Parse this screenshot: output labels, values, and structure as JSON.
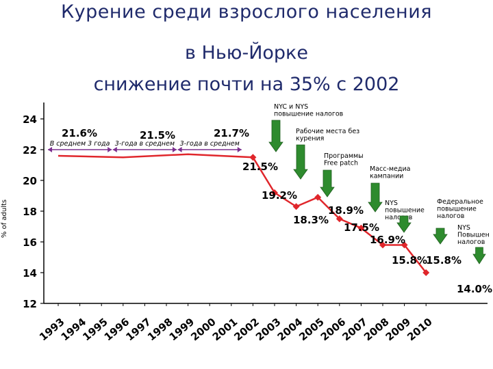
{
  "title": {
    "line1": "Курение среди взрослого населения",
    "line2": "в Нью-Йорке",
    "line3": "снижение почти на 35% с 2002"
  },
  "colors": {
    "title": "#1f2a6b",
    "line": "#e0262b",
    "arrow": "#2e8b2e",
    "bracket": "#7b2f8f",
    "axis": "#000000"
  },
  "chart_data": {
    "type": "line",
    "ylabel": "% of adults",
    "ylim": [
      12,
      24
    ],
    "yticks": [
      12,
      14,
      16,
      18,
      20,
      22,
      24
    ],
    "x": [
      "1993",
      "1994",
      "1995",
      "1996",
      "1997",
      "1998",
      "1999",
      "2000",
      "2001",
      "2002",
      "2003",
      "2004",
      "2005",
      "2006",
      "2007",
      "2008",
      "2009",
      "2010"
    ],
    "series": [
      {
        "points": [
          {
            "x": "1993",
            "y": 21.6
          },
          {
            "x": "1996",
            "y": 21.5
          },
          {
            "x": "1999",
            "y": 21.7
          },
          {
            "x": "2002",
            "y": 21.5
          },
          {
            "x": "2003",
            "y": 19.2
          },
          {
            "x": "2004",
            "y": 18.3
          },
          {
            "x": "2005",
            "y": 18.9
          },
          {
            "x": "2006",
            "y": 17.5
          },
          {
            "x": "2007",
            "y": 16.9
          },
          {
            "x": "2008",
            "y": 15.8
          },
          {
            "x": "2009",
            "y": 15.8
          },
          {
            "x": "2010",
            "y": 14.0
          }
        ]
      }
    ],
    "data_labels": [
      {
        "text": "21.6%",
        "y": 21.6
      },
      {
        "text": "21.5%",
        "y": 21.5
      },
      {
        "text": "21.7%",
        "y": 21.7
      },
      {
        "text": "21.5%",
        "y": 21.5
      },
      {
        "text": "19.2%",
        "y": 19.2
      },
      {
        "text": "18.3%",
        "y": 18.3
      },
      {
        "text": "18.9%",
        "y": 18.9
      },
      {
        "text": "17.5%",
        "y": 17.5
      },
      {
        "text": "16.9%",
        "y": 16.9
      },
      {
        "text": "15.8%",
        "y": 15.8
      },
      {
        "text": "15.8%",
        "y": 15.8
      },
      {
        "text": "14.0%",
        "y": 14.0
      }
    ],
    "period_brackets": [
      {
        "label": "В среднем 3 года",
        "from": "1993",
        "to": "1995"
      },
      {
        "label": "3-года в среднем",
        "from": "1996",
        "to": "1998"
      },
      {
        "label": "3-года в среднем",
        "from": "1999",
        "to": "2001"
      }
    ],
    "annotations": [
      {
        "lines": [
          "NYC и NYS",
          "повышение налогов"
        ],
        "year": "2002"
      },
      {
        "lines": [
          "Рабочие места без",
          "курения"
        ],
        "year": "2003"
      },
      {
        "lines": [
          "Программы",
          "Free patch"
        ],
        "year": "2004"
      },
      {
        "lines": [
          "Масс-медиа",
          "кампании"
        ],
        "year": "2006"
      },
      {
        "lines": [
          "NYS",
          "повышение",
          "налогов"
        ],
        "year": "2008"
      },
      {
        "lines": [
          "Федеральное",
          "повышение",
          "налогов"
        ],
        "year": "2009"
      },
      {
        "lines": [
          "NYS",
          "Повышен",
          "налогов"
        ],
        "year": "2010"
      }
    ],
    "grid": false
  }
}
